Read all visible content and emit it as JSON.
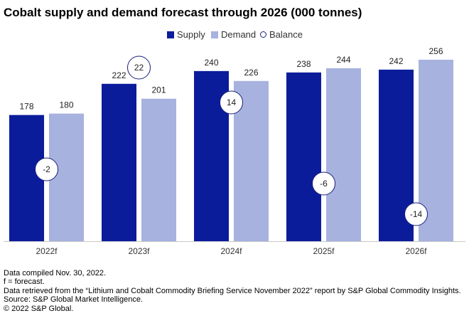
{
  "title": "Cobalt supply and demand forecast through 2026 (000 tonnes)",
  "colors": {
    "supply": "#0b1c9b",
    "demand": "#a7b2df",
    "balance_border": "#1a1f7a",
    "baseline": "#c8c8c8"
  },
  "legend": {
    "supply": "Supply",
    "demand": "Demand",
    "balance": "Balance"
  },
  "chart_data": {
    "type": "bar",
    "title": "Cobalt supply and demand forecast through 2026 (000 tonnes)",
    "categories": [
      "2022f",
      "2023f",
      "2024f",
      "2025f",
      "2026f"
    ],
    "series": [
      {
        "name": "Supply",
        "values": [
          178,
          222,
          240,
          238,
          242
        ]
      },
      {
        "name": "Demand",
        "values": [
          180,
          201,
          226,
          244,
          256
        ]
      },
      {
        "name": "Balance",
        "values": [
          -2,
          22,
          14,
          -6,
          -14
        ]
      }
    ],
    "data_labels": {
      "supply": [
        "178",
        "222",
        "240",
        "238",
        "242"
      ],
      "demand": [
        "180",
        "201",
        "226",
        "244",
        "256"
      ],
      "balance": [
        "-2",
        "22",
        "14",
        "-6",
        "-14"
      ]
    },
    "ylim": [
      0,
      280
    ],
    "grid": false,
    "legend_position": "top-right",
    "xlabel": "",
    "ylabel": ""
  },
  "notes": [
    "Data compiled Nov. 30, 2022.",
    "f = forecast.",
    "Data retrieved from the “Lithium and Cobalt Commodity Briefing Service November 2022” report by S&P Global Commodity Insights.",
    "Source: S&P Global Market Intelligence.",
    "© 2022 S&P Global."
  ]
}
